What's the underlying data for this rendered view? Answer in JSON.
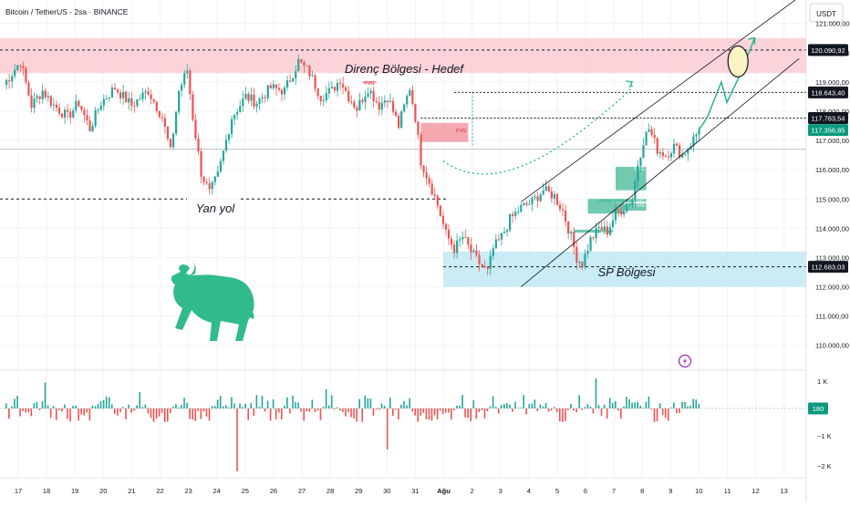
{
  "header": {
    "title": "Bitcoin / TetherUS · 2sa · BINANCE",
    "currency": "USDT"
  },
  "colors": {
    "up": "#26a69a",
    "down": "#ef5350",
    "resistance_zone": "#f9c5cc",
    "support_zone": "#bfe9f3",
    "fvg_red": "#f28b96",
    "fvg_green": "#4dbb9c",
    "path_green": "#2bb38a",
    "accent_dark": "#131722",
    "current_price": "#0b9a7e",
    "bull": "#31bb8c",
    "lightning": "#9c27b0"
  },
  "annotations": {
    "resistance": "Direnç Bölgesi - Hedef",
    "sideways": "Yan yol",
    "support": "SP Bölgesi",
    "fvg": "FVG"
  },
  "icons": {
    "bull": "bull-icon",
    "lightning": "lightning-icon"
  },
  "chart_data": {
    "type": "candlestick",
    "price_axis": {
      "ylim": [
        109400,
        121800
      ],
      "ticks": [
        110000,
        111000,
        112000,
        113000,
        114000,
        115000,
        116000,
        117000,
        118000,
        119000,
        120000,
        121000
      ],
      "tick_labels": [
        "110.000,00",
        "111.000,00",
        "112.000,00",
        "113.000,00",
        "114.000,00",
        "115.000,00",
        "116.000,00",
        "117.000,00",
        "118.000,00",
        "119.000,00",
        "120.000,00",
        "121.000,00"
      ]
    },
    "price_markers": [
      {
        "value": 120090.92,
        "label": "120.090,92",
        "style": "dark"
      },
      {
        "value": 118643.4,
        "label": "118.643,40",
        "style": "dark"
      },
      {
        "value": 117763.54,
        "label": "117.763,54",
        "style": "dark"
      },
      {
        "value": 117356.85,
        "label": "117.356,85",
        "style": "current"
      },
      {
        "value": 112683.03,
        "label": "112.683,03",
        "style": "dark"
      }
    ],
    "x_axis": {
      "labels": [
        "17",
        "18",
        "19",
        "20",
        "21",
        "22",
        "23",
        "24",
        "25",
        "26",
        "27",
        "28",
        "29",
        "30",
        "31",
        "Ağu",
        "2",
        "3",
        "4",
        "5",
        "6",
        "7",
        "8",
        "9",
        "10",
        "11",
        "12",
        "13"
      ],
      "bold": [
        "Ağu"
      ]
    },
    "volume_axis": {
      "ticks": [
        "1 K",
        "0",
        "−1 K",
        "−2 K"
      ],
      "current": "180"
    },
    "zones": [
      {
        "name": "Direnç Bölgesi - Hedef",
        "y": [
          119300,
          120500
        ]
      },
      {
        "name": "SP Bölgesi",
        "y": [
          112000,
          113200
        ]
      }
    ],
    "levels": {
      "sideways": 115000,
      "resistance_mid": 120090.92,
      "support_mid": 112683.03
    },
    "price_anchors": [
      [
        0,
        118900
      ],
      [
        6,
        119700
      ],
      [
        10,
        118200
      ],
      [
        14,
        118700
      ],
      [
        18,
        118200
      ],
      [
        23,
        117800
      ],
      [
        27,
        118300
      ],
      [
        31,
        117400
      ],
      [
        35,
        118300
      ],
      [
        40,
        118800
      ],
      [
        46,
        118200
      ],
      [
        52,
        118700
      ],
      [
        57,
        117800
      ],
      [
        60,
        116600
      ],
      [
        63,
        118700
      ],
      [
        66,
        119400
      ],
      [
        68,
        117800
      ],
      [
        71,
        115900
      ],
      [
        74,
        115200
      ],
      [
        77,
        115800
      ],
      [
        82,
        117800
      ],
      [
        87,
        118500
      ],
      [
        91,
        118300
      ],
      [
        96,
        118800
      ],
      [
        101,
        118700
      ],
      [
        106,
        119700
      ],
      [
        110,
        119300
      ],
      [
        114,
        118500
      ],
      [
        118,
        118700
      ],
      [
        121,
        119100
      ],
      [
        124,
        118500
      ],
      [
        127,
        118100
      ],
      [
        131,
        118800
      ],
      [
        135,
        118200
      ],
      [
        138,
        118500
      ],
      [
        142,
        117500
      ],
      [
        146,
        118800
      ],
      [
        148,
        117800
      ],
      [
        150,
        116300
      ],
      [
        153,
        115600
      ],
      [
        156,
        114800
      ],
      [
        159,
        113800
      ],
      [
        162,
        113300
      ],
      [
        165,
        113700
      ],
      [
        168,
        113200
      ],
      [
        171,
        112800
      ],
      [
        174,
        112500
      ],
      [
        176,
        113300
      ],
      [
        179,
        113700
      ],
      [
        182,
        114300
      ],
      [
        186,
        114700
      ],
      [
        190,
        114900
      ],
      [
        194,
        115300
      ],
      [
        198,
        115100
      ],
      [
        201,
        114600
      ],
      [
        204,
        113700
      ],
      [
        206,
        113000
      ],
      [
        208,
        112800
      ],
      [
        211,
        113600
      ],
      [
        214,
        114000
      ],
      [
        217,
        113900
      ],
      [
        220,
        114500
      ],
      [
        223,
        114700
      ],
      [
        226,
        115000
      ],
      [
        228,
        116200
      ],
      [
        230,
        117000
      ],
      [
        232,
        117400
      ],
      [
        235,
        116700
      ],
      [
        238,
        116500
      ],
      [
        241,
        116800
      ],
      [
        244,
        116500
      ],
      [
        247,
        116900
      ],
      [
        250,
        117356.85
      ]
    ],
    "projection": {
      "arc": [
        [
          158,
          116300
        ],
        [
          170,
          115500
        ],
        [
          186,
          115700
        ],
        [
          210,
          117500
        ],
        [
          226,
          119000
        ]
      ],
      "path": [
        [
          250,
          117356.85
        ],
        [
          253,
          117800
        ],
        [
          258,
          119000
        ],
        [
          260,
          118300
        ],
        [
          264,
          119100
        ],
        [
          270,
          120500
        ]
      ],
      "target": [
        264,
        119700
      ]
    },
    "channel": {
      "upper": [
        [
          186,
          114900
        ],
        [
          286,
          121900
        ]
      ],
      "lower": [
        [
          186,
          112000
        ],
        [
          286,
          119800
        ]
      ]
    },
    "fvg_boxes": [
      {
        "color": "red",
        "x": [
          129,
          134
        ],
        "y": [
          118950,
          119030
        ],
        "label": "FVG"
      },
      {
        "color": "red",
        "x": [
          150,
          167
        ],
        "y": [
          116950,
          117600
        ],
        "label": "FVG"
      },
      {
        "color": "green",
        "x": [
          220,
          231
        ],
        "y": [
          115300,
          116100
        ],
        "label": "FVG"
      },
      {
        "color": "green",
        "x": [
          210,
          223
        ],
        "y": [
          114500,
          115000
        ],
        "label": "FVG"
      },
      {
        "color": "green",
        "x": [
          223,
          231
        ],
        "y": [
          114600,
          114850
        ],
        "label": "FVG"
      },
      {
        "color": "green",
        "x": [
          214,
          231
        ],
        "y": [
          114900,
          115000
        ],
        "label": "FVG"
      },
      {
        "color": "green",
        "x": [
          205,
          219
        ],
        "y": [
          113850,
          113950
        ],
        "label": "FVG"
      }
    ],
    "dotted_lines": [
      {
        "from_index": 162,
        "value": 118643.4
      },
      {
        "from_index": 150,
        "value": 117763.54
      }
    ],
    "volume_spikes": [
      {
        "index": 15,
        "value": 0.95
      },
      {
        "index": 84,
        "value": -2.3
      },
      {
        "index": 138,
        "value": -1.5
      },
      {
        "index": 213,
        "value": 1.1
      },
      {
        "index": 116,
        "value": 0.7
      },
      {
        "index": 49,
        "value": 0.6
      }
    ]
  }
}
